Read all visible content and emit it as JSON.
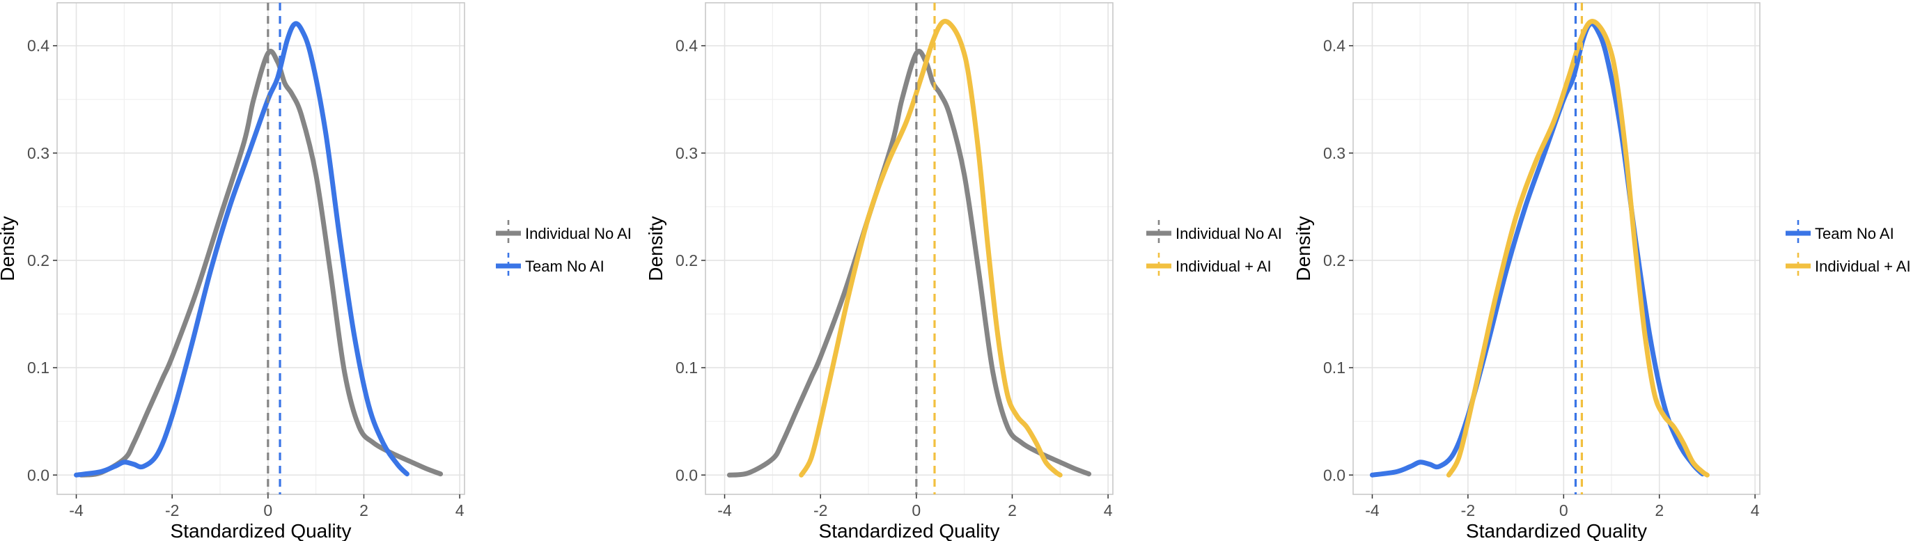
{
  "colors": {
    "Individual No AI": "#858585",
    "Team No AI": "#3a75e6",
    "Individual + AI": "#f2c040",
    "grid": "#e3e3e3",
    "panel_border": "#c8c8c8"
  },
  "chart_data": [
    {
      "type": "line",
      "xlabel": "Standardized Quality",
      "ylabel": "Density",
      "xlim": [
        -4.4,
        4.1
      ],
      "ylim": [
        -0.018,
        0.44
      ],
      "xticks": [
        -4,
        -2,
        0,
        2,
        4
      ],
      "yticks": [
        0.0,
        0.1,
        0.2,
        0.3,
        0.4
      ],
      "xtick_labels": [
        "-4",
        "-2",
        "0",
        "2",
        "4"
      ],
      "ytick_labels": [
        "0.0",
        "0.1",
        "0.2",
        "0.3",
        "0.4"
      ],
      "grid": true,
      "legend_position": "right",
      "series": [
        {
          "name": "Individual No AI",
          "mean": 0.0,
          "x": [
            -3.9,
            -3.5,
            -3.0,
            -2.8,
            -2.5,
            -2.2,
            -2.0,
            -1.5,
            -1.0,
            -0.5,
            -0.3,
            0.0,
            0.2,
            0.35,
            0.5,
            0.7,
            1.0,
            1.3,
            1.6,
            1.9,
            2.2,
            2.6,
            3.0,
            3.3,
            3.6
          ],
          "y": [
            0.0,
            0.002,
            0.015,
            0.03,
            0.06,
            0.09,
            0.11,
            0.17,
            0.24,
            0.31,
            0.35,
            0.393,
            0.385,
            0.365,
            0.355,
            0.335,
            0.28,
            0.19,
            0.095,
            0.045,
            0.03,
            0.02,
            0.012,
            0.006,
            0.001
          ]
        },
        {
          "name": "Team No AI",
          "mean": 0.25,
          "x": [
            -4.0,
            -3.5,
            -3.2,
            -3.0,
            -2.8,
            -2.6,
            -2.3,
            -2.0,
            -1.6,
            -1.2,
            -0.8,
            -0.4,
            0.0,
            0.2,
            0.4,
            0.55,
            0.7,
            0.9,
            1.2,
            1.5,
            1.8,
            2.1,
            2.4,
            2.7,
            2.9
          ],
          "y": [
            0.0,
            0.003,
            0.008,
            0.012,
            0.01,
            0.008,
            0.02,
            0.055,
            0.12,
            0.19,
            0.25,
            0.3,
            0.35,
            0.37,
            0.405,
            0.42,
            0.415,
            0.39,
            0.32,
            0.22,
            0.13,
            0.065,
            0.03,
            0.01,
            0.001
          ]
        }
      ]
    },
    {
      "type": "line",
      "xlabel": "Standardized Quality",
      "ylabel": "Density",
      "xlim": [
        -4.4,
        4.1
      ],
      "ylim": [
        -0.018,
        0.44
      ],
      "xticks": [
        -4,
        -2,
        0,
        2,
        4
      ],
      "yticks": [
        0.0,
        0.1,
        0.2,
        0.3,
        0.4
      ],
      "xtick_labels": [
        "-4",
        "-2",
        "0",
        "2",
        "4"
      ],
      "ytick_labels": [
        "0.0",
        "0.1",
        "0.2",
        "0.3",
        "0.4"
      ],
      "grid": true,
      "legend_position": "right",
      "series": [
        {
          "name": "Individual No AI",
          "mean": 0.0,
          "x": [
            -3.9,
            -3.5,
            -3.0,
            -2.8,
            -2.5,
            -2.2,
            -2.0,
            -1.5,
            -1.0,
            -0.5,
            -0.3,
            0.0,
            0.2,
            0.35,
            0.5,
            0.7,
            1.0,
            1.3,
            1.6,
            1.9,
            2.2,
            2.6,
            3.0,
            3.3,
            3.6
          ],
          "y": [
            0.0,
            0.002,
            0.015,
            0.03,
            0.06,
            0.09,
            0.11,
            0.17,
            0.24,
            0.31,
            0.35,
            0.393,
            0.385,
            0.365,
            0.355,
            0.335,
            0.28,
            0.19,
            0.095,
            0.045,
            0.03,
            0.02,
            0.012,
            0.006,
            0.001
          ]
        },
        {
          "name": "Individual + AI",
          "mean": 0.38,
          "x": [
            -2.4,
            -2.2,
            -2.0,
            -1.7,
            -1.4,
            -1.0,
            -0.6,
            -0.2,
            0.1,
            0.35,
            0.55,
            0.75,
            0.95,
            1.1,
            1.3,
            1.5,
            1.7,
            1.9,
            2.1,
            2.3,
            2.5,
            2.7,
            2.9,
            3.0
          ],
          "y": [
            0.0,
            0.015,
            0.05,
            0.11,
            0.17,
            0.24,
            0.29,
            0.33,
            0.37,
            0.405,
            0.422,
            0.418,
            0.4,
            0.37,
            0.3,
            0.21,
            0.13,
            0.075,
            0.055,
            0.045,
            0.03,
            0.012,
            0.003,
            0.0
          ]
        }
      ]
    },
    {
      "type": "line",
      "xlabel": "Standardized Quality",
      "ylabel": "Density",
      "xlim": [
        -4.4,
        4.1
      ],
      "ylim": [
        -0.018,
        0.44
      ],
      "xticks": [
        -4,
        -2,
        0,
        2,
        4
      ],
      "yticks": [
        0.0,
        0.1,
        0.2,
        0.3,
        0.4
      ],
      "xtick_labels": [
        "-4",
        "-2",
        "0",
        "2",
        "4"
      ],
      "ytick_labels": [
        "0.0",
        "0.1",
        "0.2",
        "0.3",
        "0.4"
      ],
      "grid": true,
      "legend_position": "right",
      "series": [
        {
          "name": "Team No AI",
          "mean": 0.25,
          "x": [
            -4.0,
            -3.5,
            -3.2,
            -3.0,
            -2.8,
            -2.6,
            -2.3,
            -2.0,
            -1.6,
            -1.2,
            -0.8,
            -0.4,
            0.0,
            0.2,
            0.4,
            0.55,
            0.7,
            0.9,
            1.2,
            1.5,
            1.8,
            2.1,
            2.4,
            2.7,
            2.9
          ],
          "y": [
            0.0,
            0.003,
            0.008,
            0.012,
            0.01,
            0.008,
            0.02,
            0.055,
            0.12,
            0.19,
            0.25,
            0.3,
            0.35,
            0.37,
            0.405,
            0.42,
            0.415,
            0.39,
            0.32,
            0.22,
            0.13,
            0.065,
            0.03,
            0.01,
            0.001
          ]
        },
        {
          "name": "Individual + AI",
          "mean": 0.38,
          "x": [
            -2.4,
            -2.2,
            -2.0,
            -1.7,
            -1.4,
            -1.0,
            -0.6,
            -0.2,
            0.1,
            0.35,
            0.55,
            0.75,
            0.95,
            1.1,
            1.3,
            1.5,
            1.7,
            1.9,
            2.1,
            2.3,
            2.5,
            2.7,
            2.9,
            3.0
          ],
          "y": [
            0.0,
            0.015,
            0.05,
            0.11,
            0.17,
            0.24,
            0.29,
            0.33,
            0.37,
            0.405,
            0.422,
            0.418,
            0.4,
            0.37,
            0.3,
            0.21,
            0.13,
            0.075,
            0.055,
            0.045,
            0.03,
            0.012,
            0.003,
            0.0
          ]
        }
      ]
    }
  ]
}
